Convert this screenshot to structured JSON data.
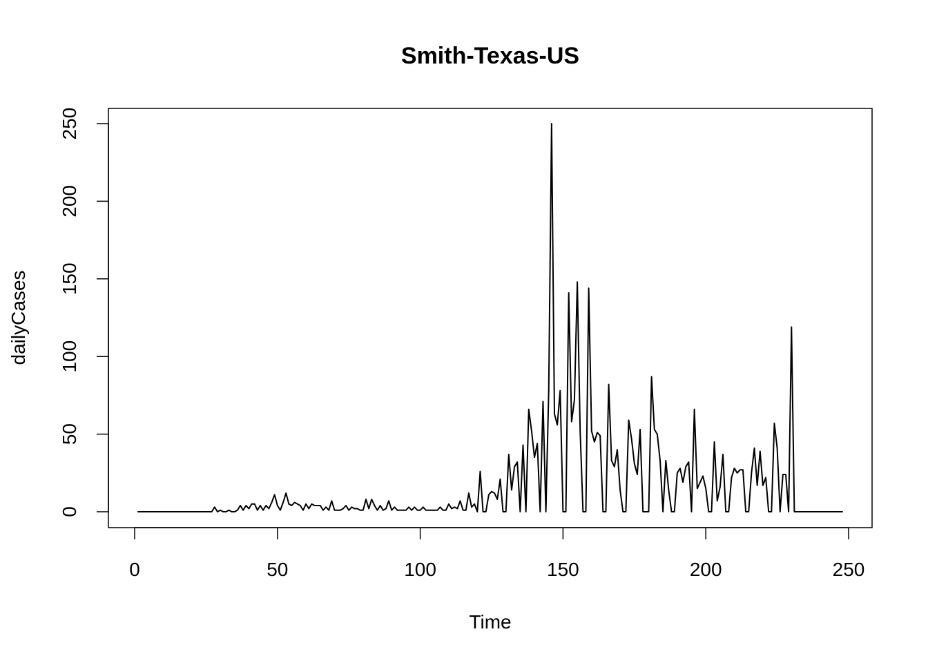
{
  "chart_data": {
    "type": "line",
    "title": "Smith-Texas-US",
    "xlabel": "Time",
    "ylabel": "dailyCases",
    "xlim": [
      1,
      248
    ],
    "ylim": [
      0,
      250
    ],
    "xticks": [
      0,
      50,
      100,
      150,
      200,
      250
    ],
    "yticks": [
      0,
      50,
      100,
      150,
      200,
      250
    ],
    "grid": false,
    "legend": "none",
    "color": "#000000",
    "series": [
      {
        "x": [
          1,
          2,
          3,
          4,
          5,
          6,
          7,
          8,
          9,
          10,
          11,
          12,
          13,
          14,
          15,
          16,
          17,
          18,
          19,
          20,
          21,
          22,
          23,
          24,
          25,
          26,
          27,
          28,
          29,
          30,
          31,
          32,
          33,
          34,
          35,
          36,
          37,
          38,
          39,
          40,
          41,
          42,
          43,
          44,
          45,
          46,
          47,
          48,
          49,
          50,
          51,
          52,
          53,
          54,
          55,
          56,
          57,
          58,
          59,
          60,
          61,
          62,
          63,
          64,
          65,
          66,
          67,
          68,
          69,
          70,
          71,
          72,
          73,
          74,
          75,
          76,
          77,
          78,
          79,
          80,
          81,
          82,
          83,
          84,
          85,
          86,
          87,
          88,
          89,
          90,
          91,
          92,
          93,
          94,
          95,
          96,
          97,
          98,
          99,
          100,
          101,
          102,
          103,
          104,
          105,
          106,
          107,
          108,
          109,
          110,
          111,
          112,
          113,
          114,
          115,
          116,
          117,
          118,
          119,
          120,
          121,
          122,
          123,
          124,
          125,
          126,
          127,
          128,
          129,
          130,
          131,
          132,
          133,
          134,
          135,
          136,
          137,
          138,
          139,
          140,
          141,
          142,
          143,
          144,
          145,
          146,
          147,
          148,
          149,
          150,
          151,
          152,
          153,
          154,
          155,
          156,
          157,
          158,
          159,
          160,
          161,
          162,
          163,
          164,
          165,
          166,
          167,
          168,
          169,
          170,
          171,
          172,
          173,
          174,
          175,
          176,
          177,
          178,
          179,
          180,
          181,
          182,
          183,
          184,
          185,
          186,
          187,
          188,
          189,
          190,
          191,
          192,
          193,
          194,
          195,
          196,
          197,
          198,
          199,
          200,
          201,
          202,
          203,
          204,
          205,
          206,
          207,
          208,
          209,
          210,
          211,
          212,
          213,
          214,
          215,
          216,
          217,
          218,
          219,
          220,
          221,
          222,
          223,
          224,
          225,
          226,
          227,
          228,
          229,
          230,
          231,
          232,
          233,
          234,
          235,
          236,
          237,
          238,
          239,
          240,
          241,
          242,
          243,
          244,
          245,
          246,
          247,
          248
        ],
        "values": [
          0,
          0,
          0,
          0,
          0,
          0,
          0,
          0,
          0,
          0,
          0,
          0,
          0,
          0,
          0,
          0,
          0,
          0,
          0,
          0,
          0,
          0,
          0,
          0,
          0,
          0,
          0,
          3,
          0,
          1,
          0,
          0,
          1,
          0,
          0,
          1,
          4,
          1,
          4,
          2,
          5,
          5,
          1,
          4,
          1,
          4,
          2,
          6,
          11,
          4,
          1,
          6,
          12,
          5,
          4,
          6,
          5,
          4,
          1,
          5,
          2,
          5,
          4,
          4,
          4,
          1,
          3,
          1,
          7,
          1,
          1,
          1,
          2,
          4,
          1,
          3,
          2,
          2,
          1,
          1,
          8,
          2,
          8,
          4,
          1,
          4,
          1,
          2,
          7,
          1,
          3,
          1,
          1,
          1,
          1,
          3,
          1,
          3,
          1,
          1,
          3,
          1,
          1,
          1,
          1,
          1,
          3,
          1,
          1,
          5,
          2,
          3,
          2,
          7,
          1,
          1,
          12,
          3,
          5,
          0,
          26,
          0,
          0,
          11,
          13,
          12,
          8,
          21,
          0,
          0,
          37,
          14,
          29,
          32,
          0,
          43,
          0,
          66,
          52,
          35,
          44,
          0,
          71,
          0,
          78,
          250,
          63,
          56,
          78,
          0,
          0,
          141,
          58,
          72,
          148,
          52,
          0,
          0,
          144,
          52,
          45,
          51,
          49,
          0,
          0,
          82,
          33,
          29,
          40,
          14,
          0,
          0,
          59,
          47,
          31,
          24,
          53,
          0,
          0,
          0,
          87,
          53,
          50,
          33,
          0,
          33,
          14,
          0,
          0,
          25,
          28,
          19,
          29,
          32,
          0,
          66,
          15,
          19,
          23,
          15,
          0,
          0,
          45,
          7,
          16,
          37,
          0,
          0,
          22,
          28,
          25,
          27,
          27,
          0,
          0,
          25,
          41,
          17,
          39,
          17,
          22,
          0,
          0,
          57,
          41,
          0,
          24,
          24,
          0,
          119,
          0,
          0,
          0,
          0,
          0,
          0,
          0,
          0,
          0,
          0,
          0,
          0,
          0,
          0,
          0,
          0,
          0,
          0
        ]
      }
    ]
  }
}
